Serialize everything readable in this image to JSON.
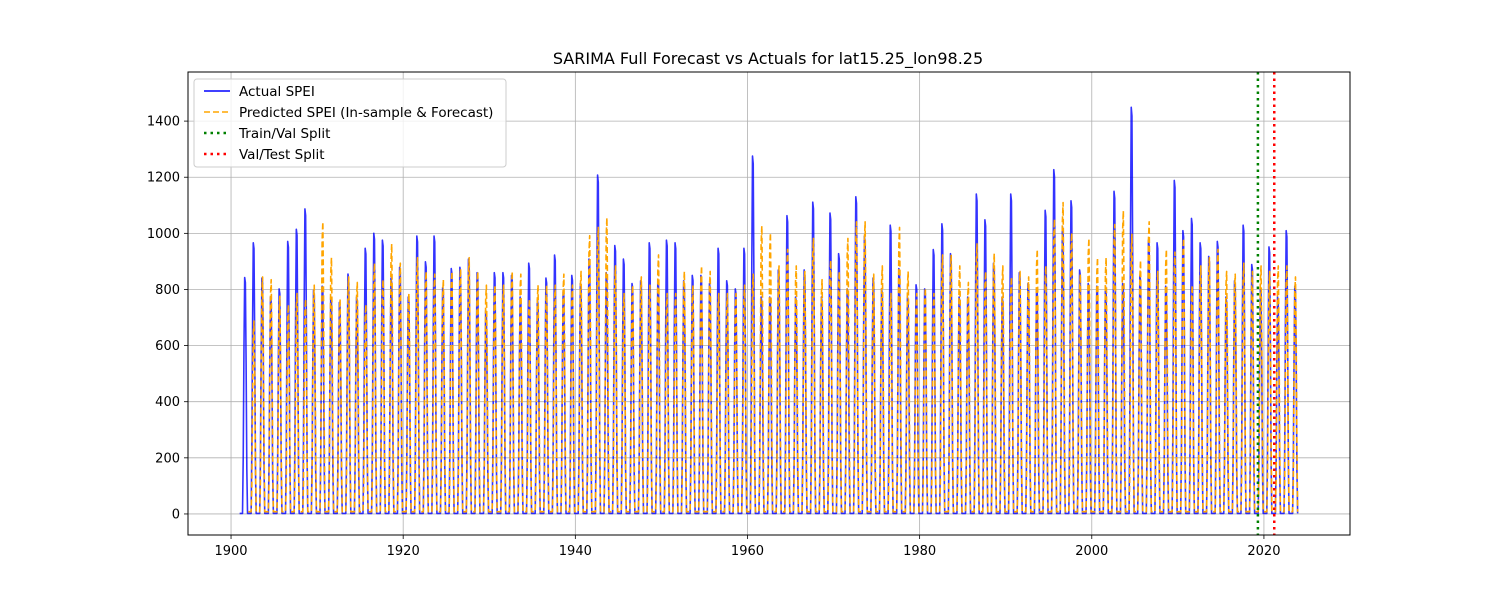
{
  "chart_data": {
    "type": "line",
    "title": "SARIMA Full Forecast vs Actuals for lat15.25_lon98.25",
    "xlabel": "",
    "ylabel": "",
    "xlim": [
      1895,
      2030
    ],
    "ylim": [
      -75,
      1575
    ],
    "x_ticks": [
      1900,
      1920,
      1940,
      1960,
      1980,
      2000,
      2020
    ],
    "y_ticks": [
      0,
      200,
      400,
      600,
      800,
      1000,
      1200,
      1400
    ],
    "grid": true,
    "legend_position": "top-left",
    "series": [
      {
        "name": "Actual SPEI",
        "style": "solid",
        "color": "#0000ff",
        "x_start": 1901.0,
        "x_step": 1,
        "annual_peaks": [
          872,
          1000,
          870,
          800,
          830,
          1005,
          1050,
          1125,
          825,
          840,
          800,
          780,
          885,
          800,
          980,
          1035,
          1010,
          870,
          910,
          800,
          1025,
          930,
          1025,
          835,
          905,
          910,
          940,
          890,
          750,
          890,
          890,
          880,
          800,
          925,
          790,
          870,
          955,
          820,
          880,
          850,
          940,
          1250,
          890,
          990,
          940,
          850,
          860,
          1000,
          860,
          1010,
          1000,
          860,
          880,
          880,
          850,
          980,
          860,
          830,
          980,
          1320,
          800,
          800,
          900,
          1100,
          800,
          900,
          1150,
          800,
          1110,
          960,
          830,
          1170,
          1025,
          870,
          830,
          1065,
          905,
          800,
          845,
          830,
          975,
          1070,
          960,
          800,
          800,
          1180,
          1085,
          925,
          800,
          1180,
          890,
          850,
          830,
          1120,
          1270,
          1060,
          1155,
          900,
          850,
          840,
          840,
          1190,
          850,
          1500,
          880,
          1010,
          1000,
          840,
          1230,
          1045,
          1090,
          1000,
          950,
          1005,
          800,
          860,
          1065,
          920,
          830,
          985,
          800,
          1045,
          840
        ]
      },
      {
        "name": "Predicted SPEI (In-sample & Forecast)",
        "style": "dashed",
        "color": "#ffa500",
        "x_start": 1902.0,
        "x_step": 1,
        "annual_peaks": [
          700,
          860,
          850,
          790,
          760,
          800,
          780,
          830,
          1060,
          930,
          780,
          860,
          840,
          760,
          910,
          850,
          980,
          910,
          800,
          930,
          880,
          870,
          850,
          880,
          890,
          930,
          880,
          830,
          830,
          830,
          880,
          870,
          780,
          830,
          830,
          830,
          870,
          830,
          880,
          1010,
          1040,
          1075,
          900,
          800,
          830,
          860,
          830,
          940,
          800,
          800,
          880,
          830,
          900,
          880,
          800,
          800,
          800,
          830,
          870,
          1045,
          1020,
          900,
          960,
          900,
          880,
          1000,
          850,
          920,
          880,
          1000,
          1060,
          1060,
          870,
          900,
          800,
          1040,
          880,
          800,
          820,
          800,
          940,
          940,
          900,
          840,
          980,
          880,
          945,
          900,
          860,
          880,
          860,
          960,
          900,
          1070,
          1130,
          1020,
          870,
          1000,
          930,
          930,
          1050,
          1100,
          1015,
          920,
          1060,
          880,
          960,
          950,
          1000,
          830,
          900,
          930,
          960,
          880,
          870,
          910,
          880,
          900,
          880,
          900,
          900,
          860
        ]
      }
    ],
    "vertical_lines": [
      {
        "name": "Train/Val Split",
        "x": 2019.3,
        "color": "#008000",
        "style": "dotted"
      },
      {
        "name": "Val/Test Split",
        "x": 2021.2,
        "color": "#ff0000",
        "style": "dotted"
      }
    ]
  }
}
